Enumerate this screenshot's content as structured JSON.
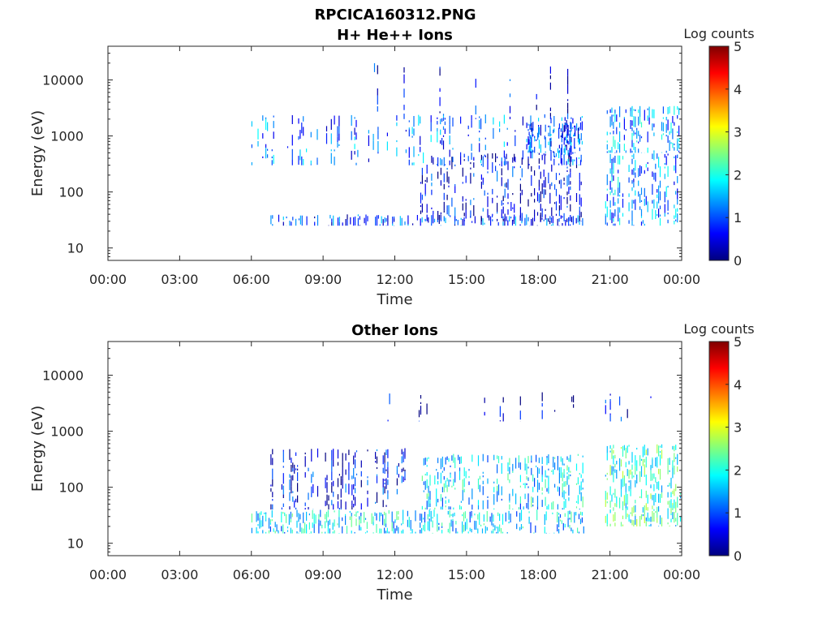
{
  "figure": {
    "title_line1": "RPCICA160312.PNG"
  },
  "colors": {
    "colormap": [
      "#00007f",
      "#0000ff",
      "#007fff",
      "#00ffff",
      "#7fff7f",
      "#ffff00",
      "#ff7f00",
      "#ff0000",
      "#7f0000"
    ]
  },
  "chart_data": [
    {
      "type": "heatmap",
      "title": "H+ He++ Ions",
      "xlabel": "Time",
      "ylabel": "Energy (eV)",
      "x_ticks": [
        "00:00",
        "03:00",
        "06:00",
        "09:00",
        "12:00",
        "15:00",
        "18:00",
        "21:00",
        "00:00"
      ],
      "y_ticks": [
        {
          "value": 10,
          "label": "10"
        },
        {
          "value": 100,
          "label": "100"
        },
        {
          "value": 1000,
          "label": "1000"
        },
        {
          "value": 10000,
          "label": "10000"
        }
      ],
      "y_scale": "log",
      "ylim": [
        6,
        40000
      ],
      "xlim_hours": [
        0,
        24
      ],
      "colorbar": {
        "label": "Log counts",
        "ticks": [
          "0",
          "1",
          "2",
          "3",
          "4",
          "5"
        ],
        "range": [
          0,
          5
        ]
      },
      "data_gap_hours": [
        19.9,
        20.8
      ],
      "bands": [
        {
          "t_start": 6.8,
          "t_end": 19.9,
          "e_min": 25,
          "e_max": 40,
          "level": 0.8,
          "density": 0.75
        },
        {
          "t_start": 13.0,
          "t_end": 19.9,
          "e_min": 30,
          "e_max": 500,
          "level": 0.5,
          "density": 0.45
        },
        {
          "t_start": 6.0,
          "t_end": 19.9,
          "e_min": 300,
          "e_max": 2500,
          "level": 1.0,
          "density": 0.35
        },
        {
          "t_start": 17.5,
          "t_end": 19.9,
          "e_min": 500,
          "e_max": 1800,
          "level": 0.9,
          "density": 0.75
        },
        {
          "t_start": 11.0,
          "t_end": 19.9,
          "e_min": 2000,
          "e_max": 20000,
          "level": 0.4,
          "density": 0.08
        },
        {
          "t_start": 20.8,
          "t_end": 24.0,
          "e_min": 25,
          "e_max": 500,
          "level": 1.2,
          "density": 0.7
        },
        {
          "t_start": 20.8,
          "t_end": 24.0,
          "e_min": 500,
          "e_max": 3500,
          "level": 1.3,
          "density": 0.65
        }
      ]
    },
    {
      "type": "heatmap",
      "title": "Other Ions",
      "xlabel": "Time",
      "ylabel": "Energy (eV)",
      "x_ticks": [
        "00:00",
        "03:00",
        "06:00",
        "09:00",
        "12:00",
        "15:00",
        "18:00",
        "21:00",
        "00:00"
      ],
      "y_ticks": [
        {
          "value": 10,
          "label": "10"
        },
        {
          "value": 100,
          "label": "100"
        },
        {
          "value": 1000,
          "label": "1000"
        },
        {
          "value": 10000,
          "label": "10000"
        }
      ],
      "y_scale": "log",
      "ylim": [
        6,
        40000
      ],
      "xlim_hours": [
        0,
        24
      ],
      "colorbar": {
        "label": "Log counts",
        "ticks": [
          "0",
          "1",
          "2",
          "3",
          "4",
          "5"
        ],
        "range": [
          0,
          5
        ]
      },
      "data_gap_hours": [
        19.9,
        20.8
      ],
      "bands": [
        {
          "t_start": 6.0,
          "t_end": 19.9,
          "e_min": 15,
          "e_max": 40,
          "level": 1.6,
          "density": 0.85
        },
        {
          "t_start": 6.8,
          "t_end": 12.5,
          "e_min": 40,
          "e_max": 500,
          "level": 0.5,
          "density": 0.4
        },
        {
          "t_start": 13.0,
          "t_end": 19.9,
          "e_min": 40,
          "e_max": 400,
          "level": 1.6,
          "density": 0.65
        },
        {
          "t_start": 11.5,
          "t_end": 19.9,
          "e_min": 1500,
          "e_max": 5000,
          "level": 0.3,
          "density": 0.06
        },
        {
          "t_start": 20.8,
          "t_end": 24.0,
          "e_min": 20,
          "e_max": 600,
          "level": 2.0,
          "density": 0.8
        },
        {
          "t_start": 20.8,
          "t_end": 24.0,
          "e_min": 1500,
          "e_max": 5000,
          "level": 0.4,
          "density": 0.15
        }
      ]
    }
  ]
}
